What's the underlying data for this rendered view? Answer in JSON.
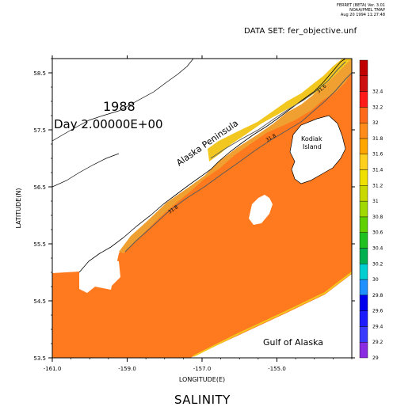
{
  "header": {
    "ferret_lines": [
      "FERRET (BETA) Ver. 3.01",
      "NOAA/PMEL TMAP",
      "Aug 20 1994 11:27:48"
    ],
    "dataset_label": "DATA SET: fer_objective.unf"
  },
  "plot": {
    "title": "SALINITY",
    "annotation_year": "1988",
    "annotation_day": "Day 2.00000E+00",
    "geo_labels": {
      "peninsula": "Alaska Peninsula",
      "kodiak_line1": "Kodiak",
      "kodiak_line2": "Island",
      "gulf": "Gulf of Alaska"
    },
    "contour_labels": [
      "31.8",
      "31.6",
      "31.8"
    ]
  },
  "chart_data": {
    "type": "heatmap",
    "title": "SALINITY",
    "xlabel": "LONGITUDE(E)",
    "ylabel": "LATITUDE(N)",
    "xlim": [
      -161.0,
      -153.0
    ],
    "ylim": [
      53.5,
      58.75
    ],
    "x_ticks": [
      "-161.0",
      "-159.0",
      "-157.0",
      "-155.0"
    ],
    "x_tick_values": [
      -161.0,
      -159.0,
      -157.0,
      -155.0
    ],
    "y_ticks": [
      "53.5",
      "54.5",
      "55.5",
      "56.5",
      "57.5",
      "58.5"
    ],
    "y_tick_values": [
      53.5,
      54.5,
      55.5,
      56.5,
      57.5,
      58.5
    ],
    "colorbar": {
      "levels": [
        29,
        29.2,
        29.4,
        29.6,
        29.8,
        30,
        30.2,
        30.4,
        30.6,
        30.8,
        31,
        31.2,
        31.4,
        31.6,
        31.8,
        32,
        32.2,
        32.4
      ],
      "labels": [
        "29",
        "29.2",
        "29.4",
        "29.6",
        "29.8",
        "30",
        "30.2",
        "30.4",
        "30.6",
        "30.8",
        "31",
        "31.2",
        "31.4",
        "31.6",
        "31.8",
        "32",
        "32.2",
        "32.4"
      ],
      "colors": [
        "#8a2be2",
        "#3a3aff",
        "#1c1cff",
        "#0000ee",
        "#1e90ff",
        "#00ced1",
        "#00b050",
        "#20c020",
        "#60d000",
        "#a0d800",
        "#c8d800",
        "#f0e000",
        "#ffd020",
        "#ffa500",
        "#ff8c1a",
        "#ff6a1a",
        "#ff1a1a",
        "#cc1010",
        "#c00000"
      ]
    },
    "fields": {
      "ocean_salinity": 31.85,
      "nearshore_band_salinity": 31.7,
      "coastal_salinity_min": 31.2
    },
    "grid": false,
    "legend_placement": "right"
  }
}
